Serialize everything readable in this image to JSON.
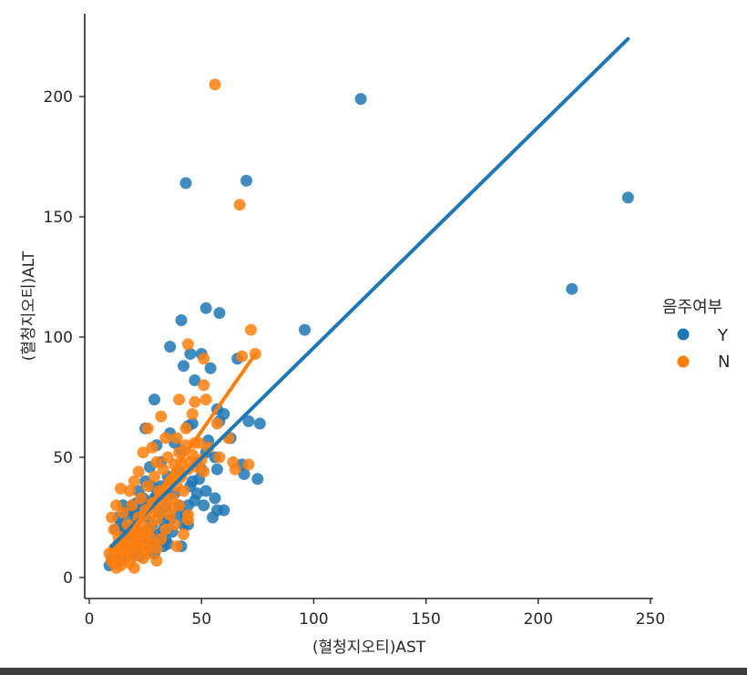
{
  "chart_data": {
    "type": "scatter",
    "xlabel": "(혈청지오티)AST",
    "ylabel": "(혈청지오티)ALT",
    "xlim": [
      -2,
      252
    ],
    "ylim": [
      -8,
      234
    ],
    "xticks": [
      0,
      50,
      100,
      150,
      200,
      250
    ],
    "yticks": [
      0,
      50,
      100,
      150,
      200
    ],
    "legend": {
      "title": "음주여부",
      "position": "right"
    },
    "series": [
      {
        "name": "Y",
        "color": "#1f77b4",
        "points": [
          [
            121,
            199
          ],
          [
            240,
            158
          ],
          [
            215,
            120
          ],
          [
            43,
            164
          ],
          [
            70,
            165
          ],
          [
            96,
            103
          ],
          [
            52,
            112
          ],
          [
            58,
            110
          ],
          [
            41,
            107
          ],
          [
            36,
            96
          ],
          [
            45,
            93
          ],
          [
            50,
            93
          ],
          [
            54,
            87
          ],
          [
            66,
            91
          ],
          [
            47,
            82
          ],
          [
            42,
            88
          ],
          [
            57,
            70
          ],
          [
            29,
            74
          ],
          [
            46,
            64
          ],
          [
            58,
            65
          ],
          [
            60,
            68
          ],
          [
            71,
            65
          ],
          [
            76,
            64
          ],
          [
            63,
            58
          ],
          [
            52,
            52
          ],
          [
            56,
            50
          ],
          [
            48,
            48
          ],
          [
            57,
            45
          ],
          [
            68,
            47
          ],
          [
            75,
            41
          ],
          [
            69,
            43
          ],
          [
            52,
            36
          ],
          [
            56,
            33
          ],
          [
            51,
            30
          ],
          [
            57,
            28
          ],
          [
            60,
            28
          ],
          [
            55,
            25
          ],
          [
            44,
            22
          ],
          [
            41,
            13
          ],
          [
            35,
            14
          ],
          [
            33,
            13
          ],
          [
            30,
            34
          ],
          [
            25,
            40
          ],
          [
            22,
            36
          ],
          [
            18,
            28
          ],
          [
            15,
            30
          ],
          [
            12,
            20
          ],
          [
            13,
            14
          ],
          [
            14,
            22
          ],
          [
            16,
            18
          ],
          [
            17,
            26
          ],
          [
            18,
            11
          ],
          [
            19,
            30
          ],
          [
            20,
            16
          ],
          [
            21,
            24
          ],
          [
            22,
            19
          ],
          [
            23,
            28
          ],
          [
            24,
            13
          ],
          [
            25,
            25
          ],
          [
            26,
            31
          ],
          [
            27,
            18
          ],
          [
            28,
            22
          ],
          [
            29,
            33
          ],
          [
            30,
            15
          ],
          [
            31,
            27
          ],
          [
            32,
            38
          ],
          [
            33,
            20
          ],
          [
            34,
            29
          ],
          [
            35,
            42
          ],
          [
            36,
            24
          ],
          [
            38,
            35
          ],
          [
            40,
            30
          ],
          [
            40,
            44
          ],
          [
            43,
            26
          ],
          [
            45,
            38
          ],
          [
            47,
            32
          ],
          [
            27,
            46
          ],
          [
            25,
            62
          ],
          [
            30,
            55
          ],
          [
            36,
            60
          ],
          [
            41,
            53
          ],
          [
            32,
            48
          ],
          [
            38,
            56
          ],
          [
            14,
            10
          ],
          [
            12,
            12
          ],
          [
            16,
            9
          ],
          [
            18,
            15
          ],
          [
            20,
            9
          ],
          [
            22,
            12
          ],
          [
            24,
            17
          ],
          [
            26,
            11
          ],
          [
            28,
            14
          ],
          [
            11,
            9
          ],
          [
            15,
            13
          ],
          [
            19,
            21
          ],
          [
            21,
            14
          ],
          [
            23,
            9
          ],
          [
            17,
            17
          ],
          [
            13,
            25
          ],
          [
            26,
            20
          ],
          [
            29,
            10
          ],
          [
            31,
            18
          ],
          [
            33,
            24
          ],
          [
            37,
            19
          ],
          [
            39,
            26
          ],
          [
            42,
            22
          ],
          [
            44,
            30
          ],
          [
            46,
            40
          ],
          [
            48,
            35
          ],
          [
            50,
            45
          ],
          [
            53,
            57
          ],
          [
            44,
            63
          ],
          [
            49,
            41
          ],
          [
            34,
            16
          ],
          [
            28,
            38
          ],
          [
            24,
            33
          ],
          [
            20,
            27
          ],
          [
            16,
            21
          ],
          [
            10,
            8
          ],
          [
            12,
            6
          ],
          [
            14,
            7
          ],
          [
            9,
            5
          ],
          [
            21,
            31
          ],
          [
            27,
            29
          ],
          [
            35,
            34
          ]
        ]
      },
      {
        "name": "N",
        "color": "#ff7f0e",
        "points": [
          [
            56,
            205
          ],
          [
            67,
            155
          ],
          [
            72,
            103
          ],
          [
            74,
            93
          ],
          [
            68,
            92
          ],
          [
            51,
            91
          ],
          [
            44,
            97
          ],
          [
            47,
            73
          ],
          [
            40,
            74
          ],
          [
            51,
            80
          ],
          [
            52,
            74
          ],
          [
            46,
            68
          ],
          [
            57,
            64
          ],
          [
            43,
            62
          ],
          [
            49,
            56
          ],
          [
            39,
            58
          ],
          [
            62,
            58
          ],
          [
            47,
            56
          ],
          [
            53,
            54
          ],
          [
            58,
            50
          ],
          [
            64,
            48
          ],
          [
            71,
            47
          ],
          [
            45,
            48
          ],
          [
            51,
            44
          ],
          [
            65,
            45
          ],
          [
            32,
            67
          ],
          [
            26,
            62
          ],
          [
            28,
            54
          ],
          [
            24,
            52
          ],
          [
            34,
            58
          ],
          [
            30,
            48
          ],
          [
            22,
            44
          ],
          [
            20,
            40
          ],
          [
            18,
            36
          ],
          [
            14,
            37
          ],
          [
            12,
            30
          ],
          [
            10,
            25
          ],
          [
            11,
            20
          ],
          [
            13,
            17
          ],
          [
            15,
            27
          ],
          [
            16,
            14
          ],
          [
            17,
            22
          ],
          [
            19,
            30
          ],
          [
            21,
            18
          ],
          [
            22,
            25
          ],
          [
            23,
            33
          ],
          [
            24,
            15
          ],
          [
            25,
            28
          ],
          [
            26,
            38
          ],
          [
            27,
            21
          ],
          [
            28,
            31
          ],
          [
            29,
            42
          ],
          [
            30,
            24
          ],
          [
            31,
            36
          ],
          [
            32,
            27
          ],
          [
            33,
            45
          ],
          [
            34,
            31
          ],
          [
            35,
            50
          ],
          [
            36,
            40
          ],
          [
            37,
            33
          ],
          [
            38,
            47
          ],
          [
            39,
            38
          ],
          [
            40,
            52
          ],
          [
            41,
            42
          ],
          [
            42,
            36
          ],
          [
            43,
            55
          ],
          [
            44,
            45
          ],
          [
            46,
            51
          ],
          [
            48,
            46
          ],
          [
            50,
            49
          ],
          [
            36,
            26
          ],
          [
            38,
            22
          ],
          [
            40,
            30
          ],
          [
            42,
            18
          ],
          [
            44,
            24
          ],
          [
            30,
            12
          ],
          [
            32,
            16
          ],
          [
            34,
            20
          ],
          [
            26,
            10
          ],
          [
            28,
            14
          ],
          [
            24,
            8
          ],
          [
            22,
            12
          ],
          [
            20,
            9
          ],
          [
            18,
            6
          ],
          [
            16,
            8
          ],
          [
            14,
            5
          ],
          [
            12,
            4
          ],
          [
            10,
            7
          ],
          [
            9,
            10
          ],
          [
            11,
            12
          ],
          [
            13,
            9
          ],
          [
            15,
            11
          ],
          [
            17,
            13
          ],
          [
            19,
            15
          ],
          [
            21,
            21
          ],
          [
            23,
            23
          ],
          [
            25,
            19
          ],
          [
            27,
            26
          ],
          [
            29,
            29
          ],
          [
            31,
            32
          ],
          [
            33,
            35
          ],
          [
            35,
            38
          ],
          [
            37,
            41
          ],
          [
            39,
            44
          ],
          [
            41,
            48
          ],
          [
            27,
            17
          ],
          [
            25,
            12
          ],
          [
            23,
            18
          ],
          [
            21,
            14
          ],
          [
            19,
            19
          ],
          [
            17,
            11
          ],
          [
            15,
            16
          ],
          [
            13,
            13
          ],
          [
            11,
            6
          ],
          [
            20,
            4
          ],
          [
            30,
            7
          ],
          [
            39,
            13
          ],
          [
            44,
            26
          ],
          [
            37,
            29
          ]
        ]
      }
    ],
    "regression": [
      {
        "series": "Y",
        "x": [
          10,
          240
        ],
        "y": [
          13,
          224
        ]
      },
      {
        "series": "N",
        "x": [
          9,
          74
        ],
        "y": [
          6,
          93
        ]
      }
    ]
  }
}
